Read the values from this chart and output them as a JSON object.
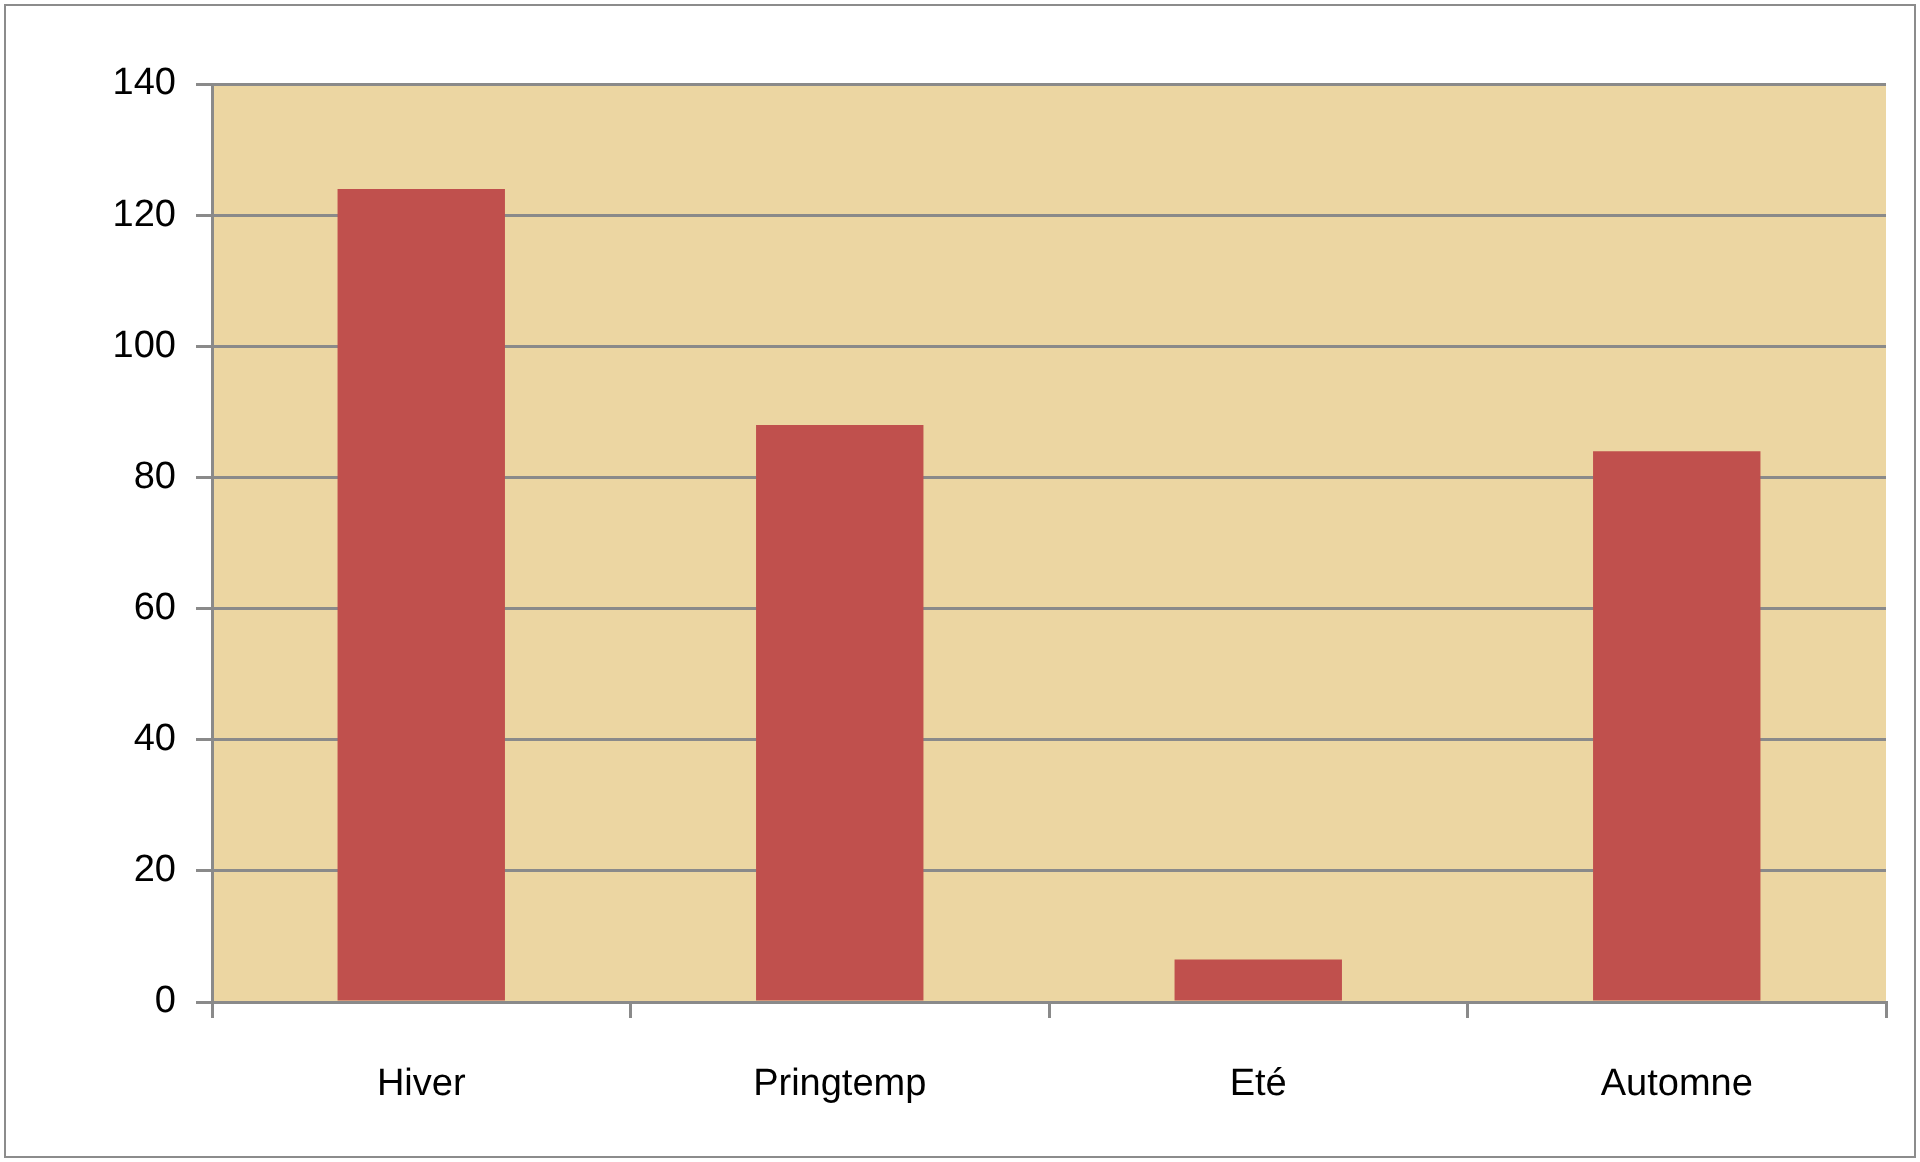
{
  "chart_data": {
    "type": "bar",
    "categories": [
      "Hiver",
      "Pringtemp",
      "Eté",
      "Automne"
    ],
    "values": [
      124,
      88,
      6.5,
      84
    ],
    "color": "#c0504d",
    "ylim": [
      0,
      140
    ],
    "yticks": [
      0,
      20,
      40,
      60,
      80,
      100,
      120,
      140
    ],
    "grid": "y"
  }
}
